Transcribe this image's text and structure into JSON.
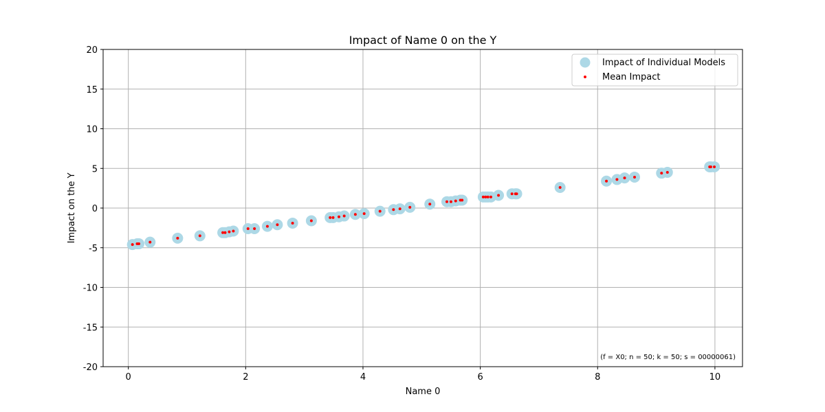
{
  "chart_data": {
    "type": "scatter",
    "title": "Impact of Name 0 on the Y",
    "xlabel": "Name 0",
    "ylabel": "Impact on the Y",
    "xlim": [
      -0.43,
      10.47
    ],
    "ylim": [
      -20,
      20
    ],
    "xticks": [
      0,
      2,
      4,
      6,
      8,
      10
    ],
    "yticks": [
      -20,
      -15,
      -10,
      -5,
      0,
      5,
      10,
      15,
      20
    ],
    "grid": true,
    "legend_position": "top-right",
    "colors": {
      "individual": "#add8e6",
      "mean": "#ff0000",
      "grid": "#b0b0b0",
      "axes": "#000000"
    },
    "series": [
      {
        "name": "Impact of Individual Models",
        "style": "large-light-blue-circle",
        "points": [
          [
            0.07,
            -4.6
          ],
          [
            0.15,
            -4.5
          ],
          [
            0.18,
            -4.5
          ],
          [
            0.37,
            -4.3
          ],
          [
            0.84,
            -3.8
          ],
          [
            1.22,
            -3.5
          ],
          [
            1.61,
            -3.1
          ],
          [
            1.65,
            -3.1
          ],
          [
            1.72,
            -3.0
          ],
          [
            1.79,
            -2.9
          ],
          [
            2.04,
            -2.6
          ],
          [
            2.15,
            -2.6
          ],
          [
            2.37,
            -2.3
          ],
          [
            2.54,
            -2.1
          ],
          [
            2.8,
            -1.9
          ],
          [
            3.12,
            -1.6
          ],
          [
            3.44,
            -1.2
          ],
          [
            3.49,
            -1.2
          ],
          [
            3.59,
            -1.1
          ],
          [
            3.68,
            -1.0
          ],
          [
            3.87,
            -0.8
          ],
          [
            4.02,
            -0.7
          ],
          [
            4.29,
            -0.4
          ],
          [
            4.52,
            -0.2
          ],
          [
            4.63,
            -0.1
          ],
          [
            4.8,
            0.1
          ],
          [
            5.14,
            0.5
          ],
          [
            5.43,
            0.8
          ],
          [
            5.5,
            0.8
          ],
          [
            5.58,
            0.9
          ],
          [
            5.66,
            1.0
          ],
          [
            5.69,
            1.0
          ],
          [
            6.05,
            1.4
          ],
          [
            6.09,
            1.4
          ],
          [
            6.13,
            1.4
          ],
          [
            6.18,
            1.4
          ],
          [
            6.31,
            1.6
          ],
          [
            6.54,
            1.8
          ],
          [
            6.6,
            1.8
          ],
          [
            6.62,
            1.8
          ],
          [
            7.36,
            2.6
          ],
          [
            8.15,
            3.4
          ],
          [
            8.33,
            3.6
          ],
          [
            8.46,
            3.8
          ],
          [
            8.63,
            3.9
          ],
          [
            9.09,
            4.4
          ],
          [
            9.19,
            4.5
          ],
          [
            9.91,
            5.2
          ],
          [
            9.93,
            5.2
          ],
          [
            9.99,
            5.2
          ]
        ]
      },
      {
        "name": "Mean Impact",
        "style": "small-red-dot",
        "points": [
          [
            0.07,
            -4.6
          ],
          [
            0.15,
            -4.5
          ],
          [
            0.18,
            -4.5
          ],
          [
            0.37,
            -4.3
          ],
          [
            0.84,
            -3.8
          ],
          [
            1.22,
            -3.5
          ],
          [
            1.61,
            -3.1
          ],
          [
            1.65,
            -3.1
          ],
          [
            1.72,
            -3.0
          ],
          [
            1.79,
            -2.9
          ],
          [
            2.04,
            -2.6
          ],
          [
            2.15,
            -2.6
          ],
          [
            2.37,
            -2.3
          ],
          [
            2.54,
            -2.1
          ],
          [
            2.8,
            -1.9
          ],
          [
            3.12,
            -1.6
          ],
          [
            3.44,
            -1.2
          ],
          [
            3.49,
            -1.2
          ],
          [
            3.59,
            -1.1
          ],
          [
            3.68,
            -1.0
          ],
          [
            3.87,
            -0.8
          ],
          [
            4.02,
            -0.7
          ],
          [
            4.29,
            -0.4
          ],
          [
            4.52,
            -0.2
          ],
          [
            4.63,
            -0.1
          ],
          [
            4.8,
            0.1
          ],
          [
            5.14,
            0.5
          ],
          [
            5.43,
            0.8
          ],
          [
            5.5,
            0.8
          ],
          [
            5.58,
            0.9
          ],
          [
            5.66,
            1.0
          ],
          [
            5.69,
            1.0
          ],
          [
            6.05,
            1.4
          ],
          [
            6.09,
            1.4
          ],
          [
            6.13,
            1.4
          ],
          [
            6.18,
            1.4
          ],
          [
            6.31,
            1.6
          ],
          [
            6.54,
            1.8
          ],
          [
            6.6,
            1.8
          ],
          [
            6.62,
            1.8
          ],
          [
            7.36,
            2.6
          ],
          [
            8.15,
            3.4
          ],
          [
            8.33,
            3.6
          ],
          [
            8.46,
            3.8
          ],
          [
            8.63,
            3.9
          ],
          [
            9.09,
            4.4
          ],
          [
            9.19,
            4.5
          ],
          [
            9.91,
            5.2
          ],
          [
            9.93,
            5.2
          ],
          [
            9.99,
            5.2
          ]
        ]
      }
    ],
    "annotation": "(f = X0; n = 50; k = 50; s = 00000061)"
  }
}
